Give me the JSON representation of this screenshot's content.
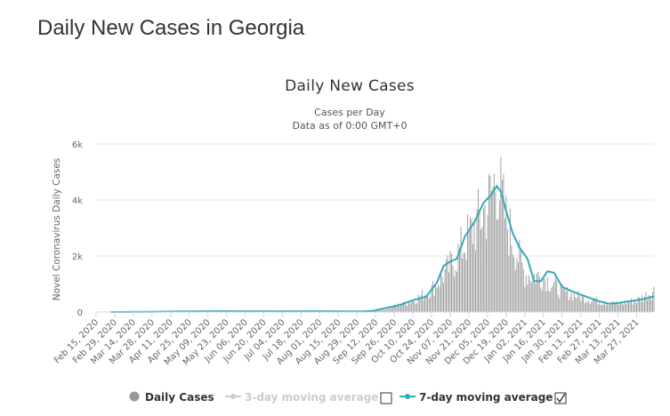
{
  "page": {
    "heading": "Daily New Cases in Georgia"
  },
  "chart_data": {
    "type": "bar",
    "title": "Daily New Cases",
    "subtitle_1": "Cases per Day",
    "subtitle_2": "Data as of 0:00 GMT+0",
    "ylabel": "Novel Coronavirus Daily Cases",
    "xlabel": "",
    "ylim": [
      0,
      6000
    ],
    "y_ticks": [
      "0",
      "2k",
      "4k",
      "6k"
    ],
    "y_tick_values": [
      0,
      2000,
      4000,
      6000
    ],
    "x_range": [
      "2020-02-15",
      "2021-04-09"
    ],
    "x_tick_labels": [
      "Feb 15, 2020",
      "Feb 29, 2020",
      "Mar 14, 2020",
      "Mar 28, 2020",
      "Apr 11, 2020",
      "Apr 25, 2020",
      "May 09, 2020",
      "May 23, 2020",
      "Jun 06, 2020",
      "Jun 20, 2020",
      "Jul 04, 2020",
      "Jul 18, 2020",
      "Aug 01, 2020",
      "Aug 15, 2020",
      "Aug 29, 2020",
      "Sep 12, 2020",
      "Sep 26, 2020",
      "Oct 10, 2020",
      "Oct 24, 2020",
      "Nov 07, 2020",
      "Nov 21, 2020",
      "Dec 05, 2020",
      "Dec 19, 2020",
      "Jan 02, 2021",
      "Jan 16, 2021",
      "Jan 30, 2021",
      "Feb 13, 2021",
      "Feb 27, 2021",
      "Mar 13, 2021",
      "Mar 27, 2021"
    ],
    "series": [
      {
        "name": "Daily Cases",
        "color": "#999999",
        "visible": true,
        "daily_values_approx": [
          {
            "date": "2020-02-26",
            "value": 0
          },
          {
            "date": "2020-03-31",
            "value": 20
          },
          {
            "date": "2020-05-15",
            "value": 35
          },
          {
            "date": "2020-07-15",
            "value": 30
          },
          {
            "date": "2020-08-31",
            "value": 30
          },
          {
            "date": "2020-09-15",
            "value": 80
          },
          {
            "date": "2020-09-26",
            "value": 220
          },
          {
            "date": "2020-10-10",
            "value": 450
          },
          {
            "date": "2020-10-24",
            "value": 900
          },
          {
            "date": "2020-11-07",
            "value": 1800
          },
          {
            "date": "2020-11-21",
            "value": 3000
          },
          {
            "date": "2020-12-05",
            "value": 4200
          },
          {
            "date": "2020-12-12",
            "value": 5400
          },
          {
            "date": "2020-12-19",
            "value": 3600
          },
          {
            "date": "2021-01-02",
            "value": 1500
          },
          {
            "date": "2021-01-16",
            "value": 1400
          },
          {
            "date": "2021-01-30",
            "value": 800
          },
          {
            "date": "2021-02-13",
            "value": 600
          },
          {
            "date": "2021-02-27",
            "value": 420
          },
          {
            "date": "2021-03-13",
            "value": 320
          },
          {
            "date": "2021-03-27",
            "value": 450
          },
          {
            "date": "2021-04-09",
            "value": 850
          }
        ]
      },
      {
        "name": "3-day moving average",
        "color": "#cccccc",
        "visible": false
      },
      {
        "name": "7-day moving average",
        "color": "#33aabb",
        "visible": true,
        "points": [
          {
            "date": "2020-02-26",
            "value": 0
          },
          {
            "date": "2020-03-28",
            "value": 10
          },
          {
            "date": "2020-04-15",
            "value": 20
          },
          {
            "date": "2020-05-15",
            "value": 30
          },
          {
            "date": "2020-07-01",
            "value": 25
          },
          {
            "date": "2020-08-01",
            "value": 30
          },
          {
            "date": "2020-08-31",
            "value": 20
          },
          {
            "date": "2020-09-10",
            "value": 40
          },
          {
            "date": "2020-09-20",
            "value": 150
          },
          {
            "date": "2020-09-30",
            "value": 250
          },
          {
            "date": "2020-10-10",
            "value": 420
          },
          {
            "date": "2020-10-20",
            "value": 550
          },
          {
            "date": "2020-10-28",
            "value": 1050
          },
          {
            "date": "2020-11-02",
            "value": 1650
          },
          {
            "date": "2020-11-07",
            "value": 1800
          },
          {
            "date": "2020-11-12",
            "value": 1900
          },
          {
            "date": "2020-11-18",
            "value": 2700
          },
          {
            "date": "2020-11-25",
            "value": 3200
          },
          {
            "date": "2020-12-02",
            "value": 3900
          },
          {
            "date": "2020-12-08",
            "value": 4200
          },
          {
            "date": "2020-12-12",
            "value": 4500
          },
          {
            "date": "2020-12-15",
            "value": 4300
          },
          {
            "date": "2020-12-19",
            "value": 3600
          },
          {
            "date": "2020-12-24",
            "value": 2800
          },
          {
            "date": "2020-12-29",
            "value": 2300
          },
          {
            "date": "2021-01-04",
            "value": 1900
          },
          {
            "date": "2021-01-09",
            "value": 1100
          },
          {
            "date": "2021-01-14",
            "value": 1100
          },
          {
            "date": "2021-01-19",
            "value": 1450
          },
          {
            "date": "2021-01-24",
            "value": 1400
          },
          {
            "date": "2021-01-30",
            "value": 900
          },
          {
            "date": "2021-02-06",
            "value": 750
          },
          {
            "date": "2021-02-13",
            "value": 620
          },
          {
            "date": "2021-02-20",
            "value": 500
          },
          {
            "date": "2021-02-27",
            "value": 380
          },
          {
            "date": "2021-03-06",
            "value": 300
          },
          {
            "date": "2021-03-13",
            "value": 320
          },
          {
            "date": "2021-03-20",
            "value": 370
          },
          {
            "date": "2021-03-27",
            "value": 420
          },
          {
            "date": "2021-04-03",
            "value": 480
          },
          {
            "date": "2021-04-09",
            "value": 560
          }
        ]
      }
    ],
    "grid": true,
    "legend_position": "bottom-center"
  },
  "legend": {
    "items": [
      {
        "label": "Daily Cases",
        "color": "#999999",
        "text_color": "#333333",
        "checkbox": false
      },
      {
        "label": "3-day moving average",
        "color": "#cccccc",
        "text_color": "#cccccc",
        "checkbox": true,
        "checked": false
      },
      {
        "label": "7-day moving average",
        "color": "#33aabb",
        "text_color": "#333333",
        "checkbox": true,
        "checked": true
      }
    ]
  }
}
